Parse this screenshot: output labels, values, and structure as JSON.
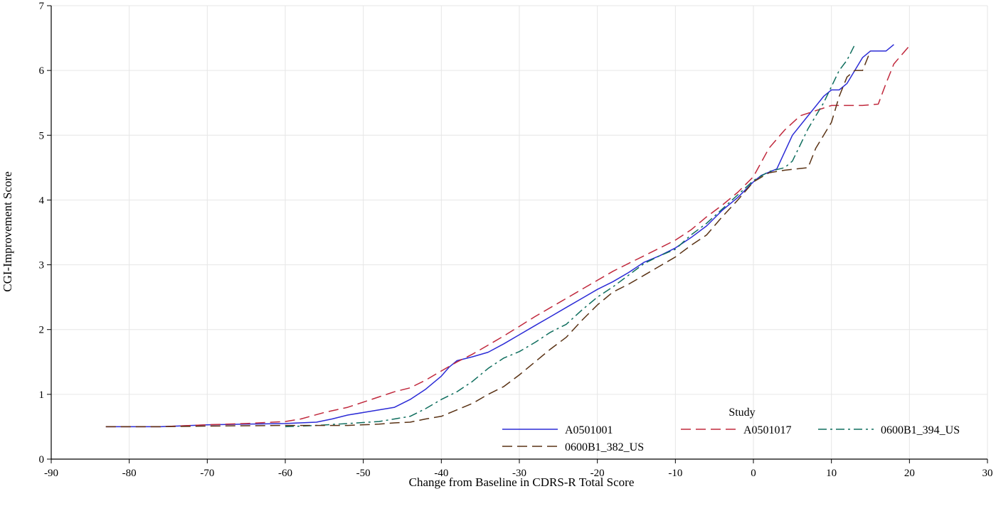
{
  "chart_data": {
    "type": "line",
    "xlabel": "Change from Baseline in CDRS-R Total Score",
    "ylabel": "CGI-Improvement Score",
    "xlim": [
      -90,
      30
    ],
    "ylim": [
      0,
      7
    ],
    "xticks": [
      -90,
      -80,
      -70,
      -60,
      -50,
      -40,
      -30,
      -20,
      -10,
      0,
      10,
      20,
      30
    ],
    "yticks": [
      0,
      1,
      2,
      3,
      4,
      5,
      6,
      7
    ],
    "grid": true,
    "legend": {
      "title": "Study",
      "placement": "bottom-right"
    },
    "series": [
      {
        "name": "A0501001",
        "color": "#2b2bd6",
        "dash": "solid",
        "points": [
          [
            -83,
            0.5
          ],
          [
            -76,
            0.5
          ],
          [
            -70,
            0.53
          ],
          [
            -65,
            0.54
          ],
          [
            -60,
            0.55
          ],
          [
            -56,
            0.57
          ],
          [
            -54,
            0.62
          ],
          [
            -52,
            0.68
          ],
          [
            -50,
            0.72
          ],
          [
            -48,
            0.76
          ],
          [
            -46,
            0.8
          ],
          [
            -44,
            0.92
          ],
          [
            -42,
            1.08
          ],
          [
            -40,
            1.28
          ],
          [
            -39,
            1.42
          ],
          [
            -38,
            1.52
          ],
          [
            -36,
            1.58
          ],
          [
            -34,
            1.65
          ],
          [
            -32,
            1.78
          ],
          [
            -30,
            1.92
          ],
          [
            -28,
            2.06
          ],
          [
            -26,
            2.2
          ],
          [
            -24,
            2.34
          ],
          [
            -22,
            2.48
          ],
          [
            -20,
            2.62
          ],
          [
            -18,
            2.74
          ],
          [
            -16,
            2.88
          ],
          [
            -14,
            3.04
          ],
          [
            -12,
            3.14
          ],
          [
            -10,
            3.26
          ],
          [
            -8,
            3.42
          ],
          [
            -6,
            3.6
          ],
          [
            -4,
            3.84
          ],
          [
            -2,
            4.04
          ],
          [
            0,
            4.28
          ],
          [
            1,
            4.38
          ],
          [
            3,
            4.48
          ],
          [
            5,
            5.0
          ],
          [
            7,
            5.3
          ],
          [
            9,
            5.6
          ],
          [
            10,
            5.7
          ],
          [
            11,
            5.7
          ],
          [
            12,
            5.8
          ],
          [
            14,
            6.2
          ],
          [
            15,
            6.3
          ],
          [
            17,
            6.3
          ],
          [
            18,
            6.4
          ]
        ]
      },
      {
        "name": "A0501017",
        "color": "#c0283c",
        "dash": "long-dash",
        "points": [
          [
            -83,
            0.5
          ],
          [
            -76,
            0.5
          ],
          [
            -70,
            0.53
          ],
          [
            -65,
            0.55
          ],
          [
            -60,
            0.58
          ],
          [
            -58,
            0.62
          ],
          [
            -55,
            0.72
          ],
          [
            -52,
            0.8
          ],
          [
            -50,
            0.88
          ],
          [
            -48,
            0.96
          ],
          [
            -46,
            1.04
          ],
          [
            -44,
            1.1
          ],
          [
            -42,
            1.22
          ],
          [
            -40,
            1.36
          ],
          [
            -38,
            1.5
          ],
          [
            -36,
            1.62
          ],
          [
            -34,
            1.76
          ],
          [
            -32,
            1.9
          ],
          [
            -30,
            2.05
          ],
          [
            -28,
            2.2
          ],
          [
            -26,
            2.34
          ],
          [
            -24,
            2.48
          ],
          [
            -22,
            2.62
          ],
          [
            -20,
            2.76
          ],
          [
            -18,
            2.9
          ],
          [
            -16,
            3.02
          ],
          [
            -14,
            3.14
          ],
          [
            -12,
            3.26
          ],
          [
            -10,
            3.38
          ],
          [
            -8,
            3.54
          ],
          [
            -6,
            3.74
          ],
          [
            -4,
            3.92
          ],
          [
            -2,
            4.12
          ],
          [
            0,
            4.36
          ],
          [
            2,
            4.8
          ],
          [
            4,
            5.08
          ],
          [
            6,
            5.3
          ],
          [
            8,
            5.38
          ],
          [
            10,
            5.46
          ],
          [
            12,
            5.46
          ],
          [
            14,
            5.46
          ],
          [
            16,
            5.48
          ],
          [
            17,
            5.8
          ],
          [
            18,
            6.1
          ],
          [
            20,
            6.38
          ]
        ]
      },
      {
        "name": "0600B1_394_US",
        "color": "#0f6e5e",
        "dash": "dash-dot",
        "points": [
          [
            -60,
            0.5
          ],
          [
            -56,
            0.52
          ],
          [
            -52,
            0.55
          ],
          [
            -48,
            0.58
          ],
          [
            -46,
            0.62
          ],
          [
            -44,
            0.66
          ],
          [
            -42,
            0.78
          ],
          [
            -40,
            0.92
          ],
          [
            -38,
            1.04
          ],
          [
            -36,
            1.2
          ],
          [
            -34,
            1.4
          ],
          [
            -32,
            1.56
          ],
          [
            -30,
            1.66
          ],
          [
            -28,
            1.8
          ],
          [
            -26,
            1.96
          ],
          [
            -24,
            2.08
          ],
          [
            -22,
            2.3
          ],
          [
            -20,
            2.5
          ],
          [
            -18,
            2.66
          ],
          [
            -16,
            2.84
          ],
          [
            -14,
            3.02
          ],
          [
            -12,
            3.14
          ],
          [
            -10,
            3.24
          ],
          [
            -8,
            3.46
          ],
          [
            -6,
            3.64
          ],
          [
            -4,
            3.86
          ],
          [
            -2,
            4.08
          ],
          [
            0,
            4.3
          ],
          [
            2,
            4.44
          ],
          [
            4,
            4.5
          ],
          [
            5,
            4.6
          ],
          [
            7,
            5.1
          ],
          [
            9,
            5.5
          ],
          [
            11,
            6.0
          ],
          [
            12,
            6.16
          ],
          [
            13,
            6.4
          ]
        ]
      },
      {
        "name": "0600B1_382_US",
        "color": "#5a3214",
        "dash": "long-dash",
        "points": [
          [
            -83,
            0.5
          ],
          [
            -76,
            0.5
          ],
          [
            -70,
            0.51
          ],
          [
            -60,
            0.52
          ],
          [
            -56,
            0.52
          ],
          [
            -52,
            0.52
          ],
          [
            -48,
            0.54
          ],
          [
            -46,
            0.56
          ],
          [
            -44,
            0.57
          ],
          [
            -42,
            0.62
          ],
          [
            -40,
            0.66
          ],
          [
            -38,
            0.76
          ],
          [
            -36,
            0.86
          ],
          [
            -34,
            1.0
          ],
          [
            -32,
            1.12
          ],
          [
            -30,
            1.3
          ],
          [
            -28,
            1.5
          ],
          [
            -26,
            1.7
          ],
          [
            -24,
            1.88
          ],
          [
            -22,
            2.14
          ],
          [
            -20,
            2.38
          ],
          [
            -18,
            2.58
          ],
          [
            -16,
            2.7
          ],
          [
            -14,
            2.84
          ],
          [
            -12,
            2.98
          ],
          [
            -10,
            3.12
          ],
          [
            -8,
            3.3
          ],
          [
            -6,
            3.46
          ],
          [
            -4,
            3.74
          ],
          [
            -2,
            4.0
          ],
          [
            0,
            4.28
          ],
          [
            2,
            4.42
          ],
          [
            4,
            4.46
          ],
          [
            7,
            4.5
          ],
          [
            8,
            4.8
          ],
          [
            10,
            5.2
          ],
          [
            11,
            5.6
          ],
          [
            12,
            5.9
          ],
          [
            13,
            6.0
          ],
          [
            14,
            6.0
          ],
          [
            15,
            6.3
          ]
        ]
      }
    ]
  }
}
